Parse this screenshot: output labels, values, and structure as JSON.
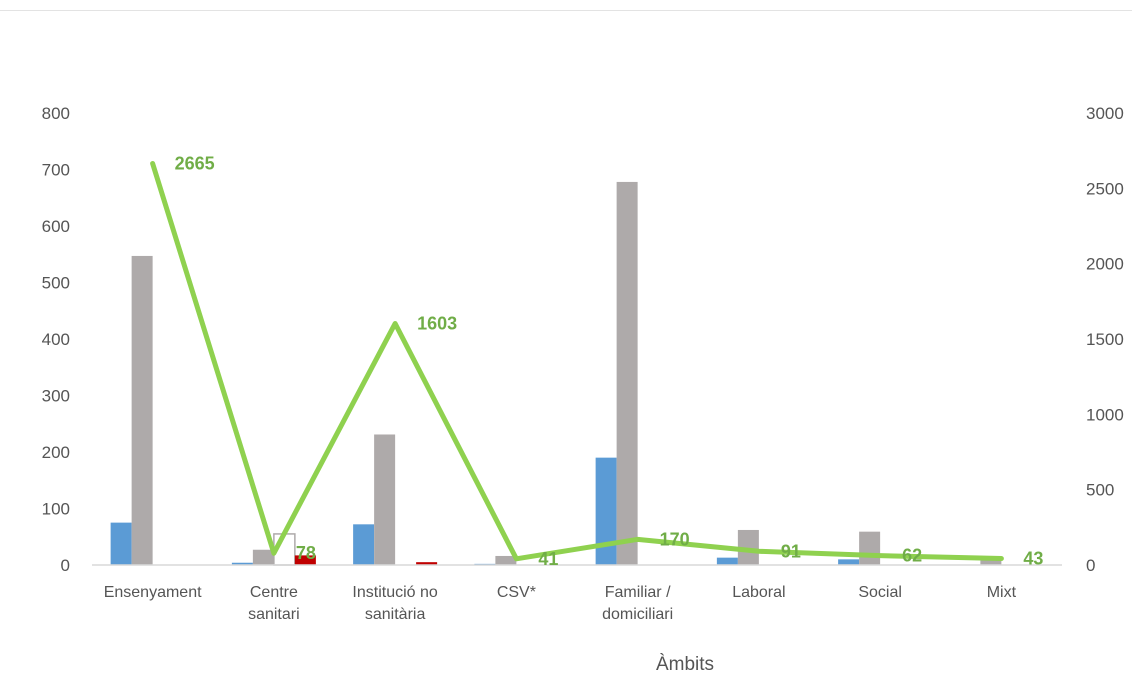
{
  "chart_data": {
    "type": "bar",
    "categories": [
      [
        "Ensenyament"
      ],
      [
        "Centre",
        "sanitari"
      ],
      [
        "Institució no",
        "sanitària"
      ],
      [
        "CSV*"
      ],
      [
        "Familiar /",
        "domiciliari"
      ],
      [
        "Laboral"
      ],
      [
        "Social"
      ],
      [
        "Mixt"
      ]
    ],
    "xlabel": "Àmbits",
    "ylim": [
      0,
      800
    ],
    "y_ticks": [
      0,
      100,
      200,
      300,
      400,
      500,
      600,
      700,
      800
    ],
    "y2lim": [
      0,
      3000
    ],
    "y2_ticks": [
      0,
      500,
      1000,
      1500,
      2000,
      2500,
      3000
    ],
    "bar_series": [
      {
        "color": "#5b9bd5",
        "values": [
          75,
          4,
          72,
          2,
          190,
          13,
          10,
          0
        ]
      },
      {
        "color": "#aeaaaa",
        "values": [
          547,
          27,
          231,
          16,
          678,
          62,
          59,
          8
        ]
      },
      {
        "color": "#ffffff",
        "outline": "#aeaaaa",
        "values": [
          0,
          55,
          0,
          0,
          0,
          0,
          0,
          0
        ]
      },
      {
        "color": "#c00000",
        "values": [
          0,
          17,
          5,
          0,
          0,
          0,
          0,
          0
        ]
      }
    ],
    "line_series": {
      "color": "#8fd14f",
      "label_color": "#70ad47",
      "axis": "secondary",
      "values": [
        2665,
        78,
        1603,
        41,
        170,
        91,
        62,
        43
      ]
    },
    "grid": false,
    "legend": "none"
  }
}
